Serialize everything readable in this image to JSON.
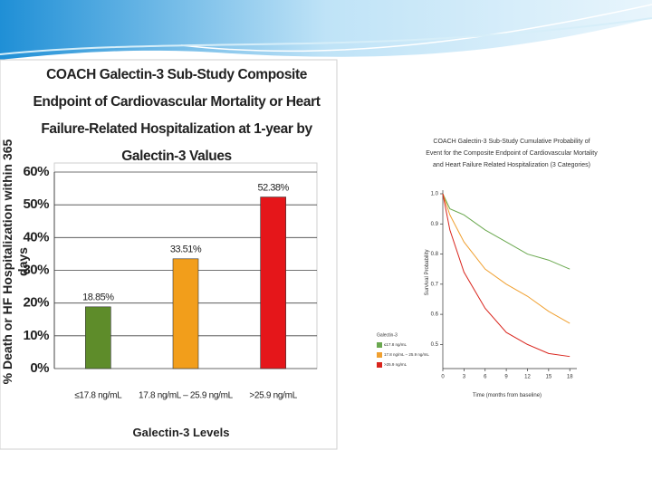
{
  "chart_data": [
    {
      "type": "bar",
      "title": "COACH Galectin-3 Sub-Study Composite Endpoint of Cardiovascular Mortality or Heart Failure-Related Hospitalization at 1-year by Galectin-3 Values",
      "y_label": "% Death or HF Hospitalization within 365 days",
      "x_label": "Galectin-3 Levels",
      "categories": [
        "≤17.8 ng/mL",
        "17.8 ng/mL – 25.9 ng/mL",
        ">25.9 ng/mL"
      ],
      "values": [
        18.85,
        33.51,
        52.38
      ],
      "value_labels": [
        "18.85%",
        "33.51%",
        "52.38%"
      ],
      "colors": [
        "#5e8c2a",
        "#f29e1b",
        "#e5161a"
      ],
      "ylim": [
        0,
        60
      ],
      "yticks": [
        {
          "value": 0,
          "label": "0%"
        },
        {
          "value": 10,
          "label": "10%"
        },
        {
          "value": 20,
          "label": "20%"
        },
        {
          "value": 30,
          "label": "30%"
        },
        {
          "value": 40,
          "label": "40%"
        },
        {
          "value": 50,
          "label": "50%"
        },
        {
          "value": 60,
          "label": "60%"
        }
      ],
      "grid": true
    },
    {
      "type": "line",
      "title": "COACH Galectin-3 Sub-Study Cumulative Probability of Event for the Composite Endpoint of Cardiovascular Mortality and Heart Failure Related Hospitalization (3 Categories)",
      "y_label": "Survival Probability",
      "x_label": "Time (months from baseline)",
      "legend_title": "Galectin-3",
      "x": [
        0,
        1,
        3,
        6,
        9,
        12,
        15,
        18
      ],
      "series": [
        {
          "name": "≤17.8 ng/mL",
          "color": "#6aa84f",
          "values": [
            1.0,
            0.95,
            0.93,
            0.88,
            0.84,
            0.8,
            0.78,
            0.75
          ]
        },
        {
          "name": "17.8 ng/mL – 25.9 ng/mL",
          "color": "#f0a030",
          "values": [
            1.0,
            0.93,
            0.84,
            0.75,
            0.7,
            0.66,
            0.61,
            0.57
          ]
        },
        {
          "name": ">25.9 ng/mL",
          "color": "#d9241c",
          "values": [
            1.0,
            0.88,
            0.74,
            0.62,
            0.54,
            0.5,
            0.47,
            0.46
          ]
        }
      ],
      "xlim": [
        0,
        19
      ],
      "xticks": [
        0,
        3,
        6,
        9,
        12,
        15,
        18
      ],
      "ylim": [
        0.42,
        1.0
      ],
      "yticks": [
        {
          "value": 1,
          "label": "1.0"
        },
        0.9,
        0.8,
        0.7,
        0.6,
        0.5
      ]
    }
  ]
}
